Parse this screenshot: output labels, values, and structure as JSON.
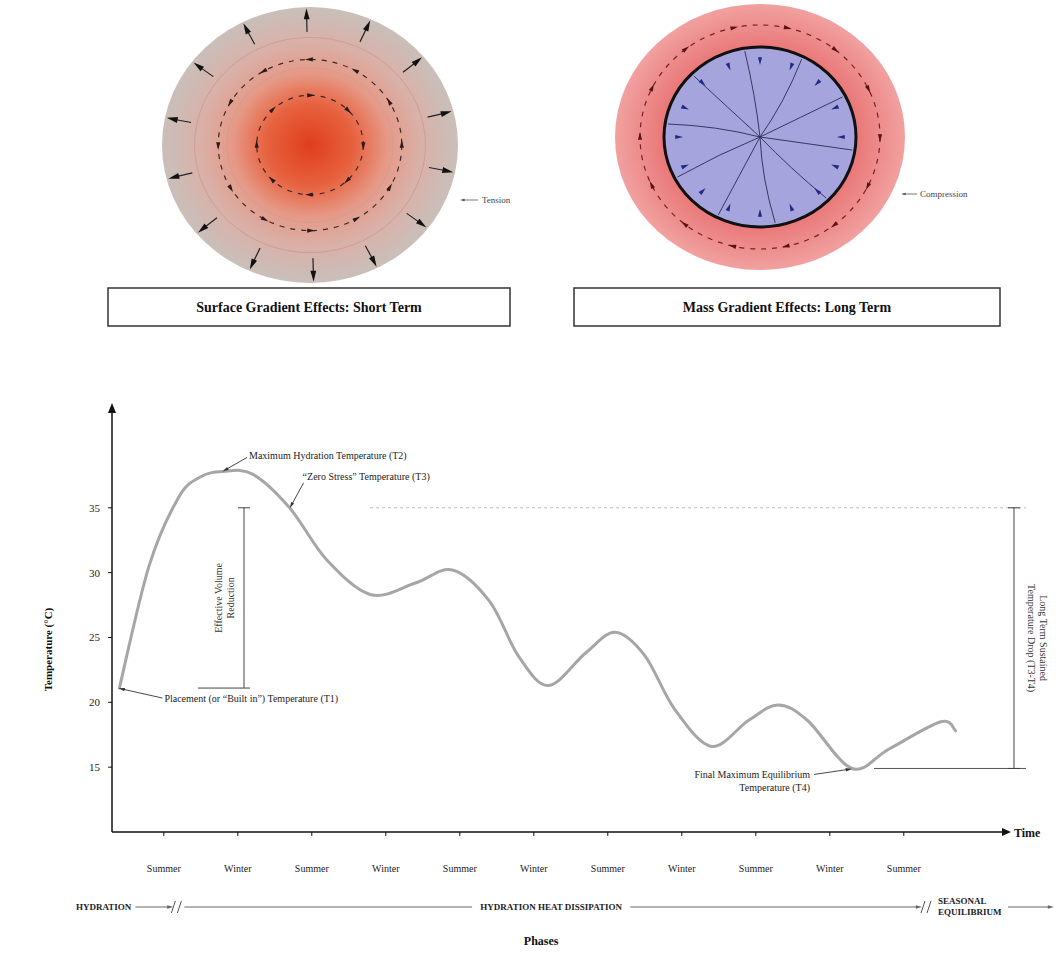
{
  "panels": [
    {
      "title": "Surface Gradient Effects: Short Term",
      "label": "Tension"
    },
    {
      "title": "Mass Gradient Effects: Long Term",
      "label": "Compression"
    }
  ],
  "chart_data": {
    "type": "line",
    "y_label": "Temperature (°C)",
    "x_label": "Time",
    "color": "#a6a6a6",
    "x": [
      0.4,
      0.8,
      1.2,
      1.5,
      1.8,
      2.2,
      2.7,
      3.2,
      3.8,
      4.4,
      4.9,
      5.4,
      5.8,
      6.2,
      6.7,
      7.1,
      7.5,
      7.9,
      8.4,
      8.9,
      9.3,
      9.7,
      10.3,
      10.8,
      11.5,
      11.7
    ],
    "values": [
      21.1,
      30.5,
      35.8,
      37.4,
      37.8,
      37.6,
      35.0,
      31.0,
      28.3,
      29.2,
      30.2,
      27.8,
      23.5,
      21.3,
      23.8,
      25.4,
      23.6,
      19.5,
      16.6,
      18.6,
      19.8,
      18.6,
      14.9,
      16.4,
      18.5,
      17.8
    ],
    "xlim": [
      0.3,
      12.3
    ],
    "ylim": [
      10,
      42
    ],
    "yticks": [
      15,
      20,
      25,
      30,
      35
    ],
    "xticks": [
      {
        "value": 1,
        "label": "Summer"
      },
      {
        "value": 2,
        "label": "Winter"
      },
      {
        "value": 3,
        "label": "Summer"
      },
      {
        "value": 4,
        "label": "Winter"
      },
      {
        "value": 5,
        "label": "Summer"
      },
      {
        "value": 6,
        "label": "Winter"
      },
      {
        "value": 7,
        "label": "Summer"
      },
      {
        "value": 8,
        "label": "Winter"
      },
      {
        "value": 9,
        "label": "Summer"
      },
      {
        "value": 10,
        "label": "Winter"
      },
      {
        "value": 11,
        "label": "Summer"
      }
    ],
    "annotations": [
      {
        "text": "Placement (or “Built in”) Temperature (T1)",
        "x": 0.4,
        "y": 21.1
      },
      {
        "text": "Maximum Hydration Temperature (T2)",
        "x": 1.8,
        "y": 37.8
      },
      {
        "text": "“Zero Stress” Temperature (T3)",
        "x": 2.7,
        "y": 35.0
      },
      {
        "text": "Final Maximum Equilibrium Temperature (T4)",
        "x": 10.3,
        "y": 14.9
      }
    ],
    "brackets": [
      {
        "text": "Effective Volume Reduction",
        "from": 35.0,
        "to": 21.1
      },
      {
        "text": "Long Term Sustained Temperature Drop (T3-T4)",
        "from": 35.0,
        "to": 14.9
      }
    ],
    "phases": {
      "title": "Phases",
      "labels": [
        "HYDRATION",
        "HYDRATION HEAT DISSIPATION",
        "SEASONAL EQUILIBRIUM"
      ],
      "boundaries": [
        1.17,
        11.3
      ]
    }
  }
}
